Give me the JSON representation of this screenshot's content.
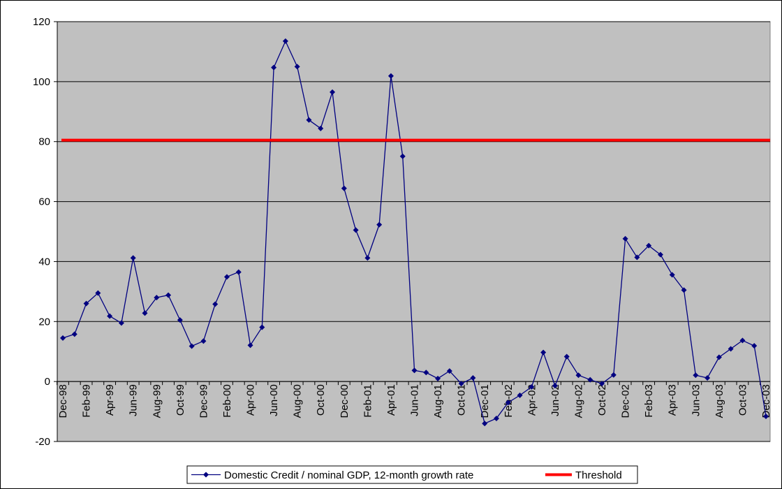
{
  "chart_data": {
    "type": "line",
    "categories": [
      "Dec-98",
      null,
      "Feb-99",
      null,
      "Apr-99",
      null,
      "Jun-99",
      null,
      "Aug-99",
      null,
      "Oct-99",
      null,
      "Dec-99",
      null,
      "Feb-00",
      null,
      "Apr-00",
      null,
      "Jun-00",
      null,
      "Aug-00",
      null,
      "Oct-00",
      null,
      "Dec-00",
      null,
      "Feb-01",
      null,
      "Apr-01",
      null,
      "Jun-01",
      null,
      "Aug-01",
      null,
      "Oct-01",
      null,
      "Dec-01",
      null,
      "Feb-02",
      null,
      "Apr-02",
      null,
      "Jun-02",
      null,
      "Aug-02",
      null,
      "Oct-02",
      null,
      "Dec-02",
      null,
      "Feb-03",
      null,
      "Apr-03",
      null,
      "Jun-03",
      null,
      "Aug-03",
      null,
      "Oct-03",
      null,
      "Dec-03"
    ],
    "series": [
      {
        "name": "Domestic Credit / nominal GDP, 12-month growth rate",
        "color": "#000080",
        "values": [
          14.5,
          15.8,
          26,
          29.5,
          21.8,
          19.5,
          41.2,
          22.8,
          28,
          28.8,
          20.5,
          11.8,
          13.5,
          25.8,
          34.9,
          36.5,
          12.1,
          18.1,
          104.7,
          113.5,
          105,
          87.2,
          84.4,
          96.5,
          64.4,
          50.5,
          41.2,
          52.3,
          101.9,
          75.1,
          3.7,
          3.0,
          1.0,
          3.5,
          -0.7,
          1.2,
          -14,
          -12.3,
          -7,
          -4.6,
          -1.8,
          9.7,
          -1.4,
          8.3,
          2.1,
          0.6,
          -0.7,
          2.2,
          47.6,
          41.4,
          45.3,
          42.3,
          35.6,
          30.5,
          2.1,
          1.2,
          8.1,
          10.9,
          13.7,
          11.9,
          -11.6
        ]
      }
    ],
    "threshold": {
      "name": "Threshold",
      "value": 80.5,
      "color": "#ff0000"
    },
    "ylim": [
      -20,
      120
    ],
    "yticks": [
      -20,
      0,
      20,
      40,
      60,
      80,
      100,
      120
    ],
    "grid": true
  }
}
